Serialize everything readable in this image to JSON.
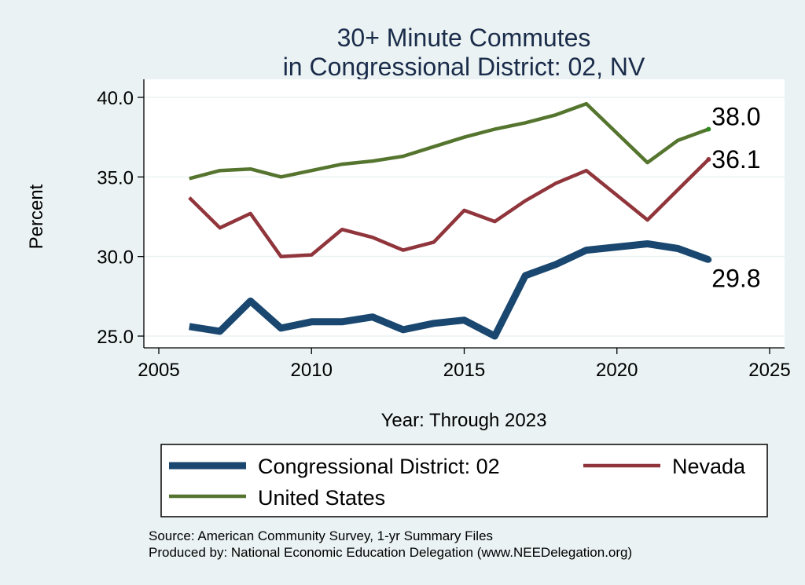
{
  "chart_data": {
    "type": "line",
    "title": [
      "30+ Minute Commutes",
      "in Congressional District:  02, NV"
    ],
    "xlabel": "Year: Through 2023",
    "ylabel": "Percent",
    "xlim": [
      2005,
      2025
    ],
    "ylim": [
      25,
      40
    ],
    "xticks": [
      2005,
      2010,
      2015,
      2020,
      2025
    ],
    "yticks": [
      25,
      30,
      35,
      40
    ],
    "ytick_labels": [
      "25.0",
      "30.0",
      "35.0",
      "40.0"
    ],
    "grid": true,
    "x": [
      2006,
      2007,
      2008,
      2009,
      2010,
      2011,
      2012,
      2013,
      2014,
      2015,
      2016,
      2017,
      2018,
      2019,
      2021,
      2022,
      2023
    ],
    "series": [
      {
        "name": "Congressional District:  02",
        "color": "#1a476f",
        "values": [
          25.6,
          25.3,
          27.2,
          25.5,
          25.9,
          25.9,
          26.2,
          25.4,
          25.8,
          26.0,
          25.0,
          28.8,
          29.5,
          30.4,
          30.8,
          30.5,
          29.8
        ],
        "end_label": "29.8"
      },
      {
        "name": "Nevada",
        "color": "#90353b",
        "values": [
          33.7,
          31.8,
          32.7,
          30.0,
          30.1,
          31.7,
          31.2,
          30.4,
          30.9,
          32.9,
          32.2,
          33.5,
          34.6,
          35.4,
          32.3,
          34.2,
          36.1
        ],
        "end_label": "36.1"
      },
      {
        "name": "United States",
        "color": "#55752f",
        "values": [
          34.9,
          35.4,
          35.5,
          35.0,
          35.4,
          35.8,
          36.0,
          36.3,
          36.9,
          37.5,
          38.0,
          38.4,
          38.9,
          39.6,
          35.9,
          37.3,
          38.0
        ],
        "end_label": "38.0"
      }
    ],
    "legend": {
      "placement": "bottom",
      "items": [
        "Congressional District:  02",
        "Nevada",
        "United States"
      ]
    },
    "source_lines": [
      "Source: American Community Survey, 1-yr Summary Files",
      "Produced by: National Economic Education Delegation (www.NEEDelegation.org)"
    ]
  }
}
